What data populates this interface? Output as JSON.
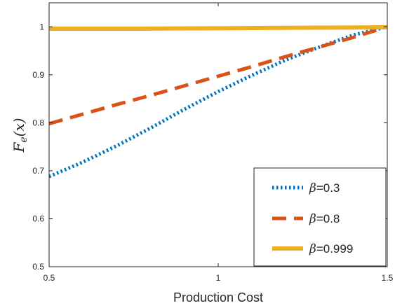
{
  "chart_data": {
    "type": "line",
    "xlabel": "Production Cost",
    "ylabel": "F",
    "ylabel_sub": "e",
    "ylabel_arg": "(x)",
    "xlim": [
      0.5,
      1.5
    ],
    "ylim": [
      0.5,
      1.05
    ],
    "xticks": [
      0.5,
      1,
      1.5
    ],
    "xtick_labels": [
      "0.5",
      "1",
      "1.5"
    ],
    "yticks": [
      0.5,
      0.6,
      0.7,
      0.8,
      0.9,
      1.0
    ],
    "ytick_labels": [
      "0.5",
      "0.6",
      "0.7",
      "0.8",
      "0.9",
      "1"
    ],
    "grid": false,
    "legend_position": "bottom-right",
    "series": [
      {
        "name": "=0.3",
        "legend_symbol": "β",
        "color": "#0072BD",
        "style": "dotted",
        "x": [
          0.5,
          0.6,
          0.7,
          0.8,
          0.9,
          1.0,
          1.1,
          1.2,
          1.3,
          1.4,
          1.5
        ],
        "y": [
          0.688,
          0.718,
          0.752,
          0.789,
          0.828,
          0.865,
          0.899,
          0.931,
          0.958,
          0.983,
          1.0
        ]
      },
      {
        "name": "=0.8",
        "legend_symbol": "β",
        "color": "#D95319",
        "style": "dashed",
        "x": [
          0.5,
          0.6,
          0.7,
          0.8,
          0.9,
          1.0,
          1.1,
          1.2,
          1.3,
          1.4,
          1.5
        ],
        "y": [
          0.798,
          0.818,
          0.838,
          0.857,
          0.877,
          0.897,
          0.917,
          0.938,
          0.958,
          0.978,
          1.0
        ]
      },
      {
        "name": "=0.999",
        "legend_symbol": "β",
        "color": "#EDB120",
        "style": "solid",
        "x": [
          0.5,
          0.75,
          1.0,
          1.25,
          1.5
        ],
        "y": [
          0.996,
          0.996,
          0.997,
          0.998,
          0.999
        ]
      }
    ]
  }
}
